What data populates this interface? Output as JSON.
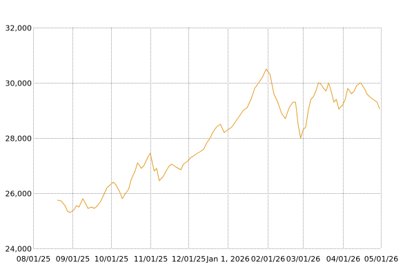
{
  "chart_data": {
    "type": "line",
    "title": "",
    "xlabel": "",
    "ylabel": "",
    "grid": true,
    "legend": "none",
    "line_color": "#e39a1e",
    "x_ticks": [
      "08/01/25",
      "09/01/25",
      "10/01/25",
      "11/01/25",
      "12/01/25",
      "Jan 1, 2026",
      "02/01/26",
      "03/01/26",
      "04/01/26",
      "05/01/26"
    ],
    "x_tick_dates": [
      "2025-08-01",
      "2025-09-01",
      "2025-10-01",
      "2025-11-01",
      "2025-12-01",
      "2026-01-01",
      "2026-02-01",
      "2026-03-01",
      "2026-04-01",
      "2026-05-01"
    ],
    "y_ticks": [
      24000,
      26000,
      28000,
      30000,
      32000
    ],
    "y_tick_labels": [
      "24,000",
      "26,000",
      "28,000",
      "30,000",
      "32,000"
    ],
    "ylim": [
      24000,
      32000
    ],
    "xlim": [
      "2025-08-01",
      "2026-05-01"
    ],
    "series": [
      {
        "x": [
          "2025-08-20",
          "2025-08-23",
          "2025-08-26",
          "2025-08-28",
          "2025-08-30",
          "2025-09-02",
          "2025-09-04",
          "2025-09-06",
          "2025-09-09",
          "2025-09-11",
          "2025-09-13",
          "2025-09-16",
          "2025-09-18",
          "2025-09-20",
          "2025-09-23",
          "2025-09-25",
          "2025-09-28",
          "2025-09-30",
          "2025-10-03",
          "2025-10-05",
          "2025-10-08",
          "2025-10-10",
          "2025-10-12",
          "2025-10-15",
          "2025-10-17",
          "2025-10-20",
          "2025-10-22",
          "2025-10-25",
          "2025-10-27",
          "2025-10-30",
          "2025-11-01",
          "2025-11-04",
          "2025-11-06",
          "2025-11-08",
          "2025-11-11",
          "2025-11-14",
          "2025-11-16",
          "2025-11-18",
          "2025-11-21",
          "2025-11-23",
          "2025-11-25",
          "2025-11-27",
          "2025-11-30",
          "2025-12-03",
          "2025-12-05",
          "2025-12-08",
          "2025-12-10",
          "2025-12-13",
          "2025-12-15",
          "2025-12-18",
          "2025-12-20",
          "2025-12-23",
          "2025-12-26",
          "2025-12-29",
          "2026-01-01",
          "2026-01-04",
          "2026-01-07",
          "2026-01-10",
          "2026-01-13",
          "2026-01-16",
          "2026-01-19",
          "2026-01-22",
          "2026-01-25",
          "2026-01-28",
          "2026-01-31",
          "2026-02-03",
          "2026-02-06",
          "2026-02-09",
          "2026-02-12",
          "2026-02-15",
          "2026-02-18",
          "2026-02-21",
          "2026-02-23",
          "2026-02-25",
          "2026-02-27",
          "2026-03-01",
          "2026-03-03",
          "2026-03-05",
          "2026-03-07",
          "2026-03-09",
          "2026-03-11",
          "2026-03-13",
          "2026-03-15",
          "2026-03-17",
          "2026-03-19",
          "2026-03-21",
          "2026-03-23",
          "2026-03-25",
          "2026-03-27",
          "2026-03-29",
          "2026-04-01",
          "2026-04-03",
          "2026-04-05",
          "2026-04-08",
          "2026-04-10",
          "2026-04-12",
          "2026-04-15",
          "2026-04-18",
          "2026-04-20",
          "2026-04-22",
          "2026-04-25",
          "2026-04-28",
          "2026-04-30"
        ],
        "y": [
          25750,
          25720,
          25550,
          25350,
          25300,
          25400,
          25550,
          25500,
          25800,
          25650,
          25450,
          25500,
          25450,
          25520,
          25700,
          25900,
          26200,
          26280,
          26400,
          26300,
          26050,
          25800,
          25950,
          26150,
          26500,
          26800,
          27100,
          26900,
          27000,
          27300,
          27450,
          26800,
          26900,
          26450,
          26600,
          26850,
          27000,
          27050,
          26950,
          26900,
          26850,
          27050,
          27150,
          27300,
          27350,
          27450,
          27500,
          27600,
          27800,
          28000,
          28200,
          28400,
          28500,
          28200,
          28300,
          28400,
          28600,
          28800,
          29000,
          29100,
          29400,
          29800,
          30000,
          30200,
          30500,
          30300,
          29600,
          29300,
          28900,
          28700,
          29100,
          29300,
          29300,
          28500,
          28000,
          28300,
          28400,
          29000,
          29400,
          29500,
          29700,
          30000,
          29950,
          29800,
          29700,
          30000,
          29700,
          29300,
          29400,
          29050,
          29200,
          29400,
          29800,
          29600,
          29700,
          29900,
          30000,
          29800,
          29600,
          29500,
          29400,
          29300,
          29050
        ]
      }
    ]
  }
}
